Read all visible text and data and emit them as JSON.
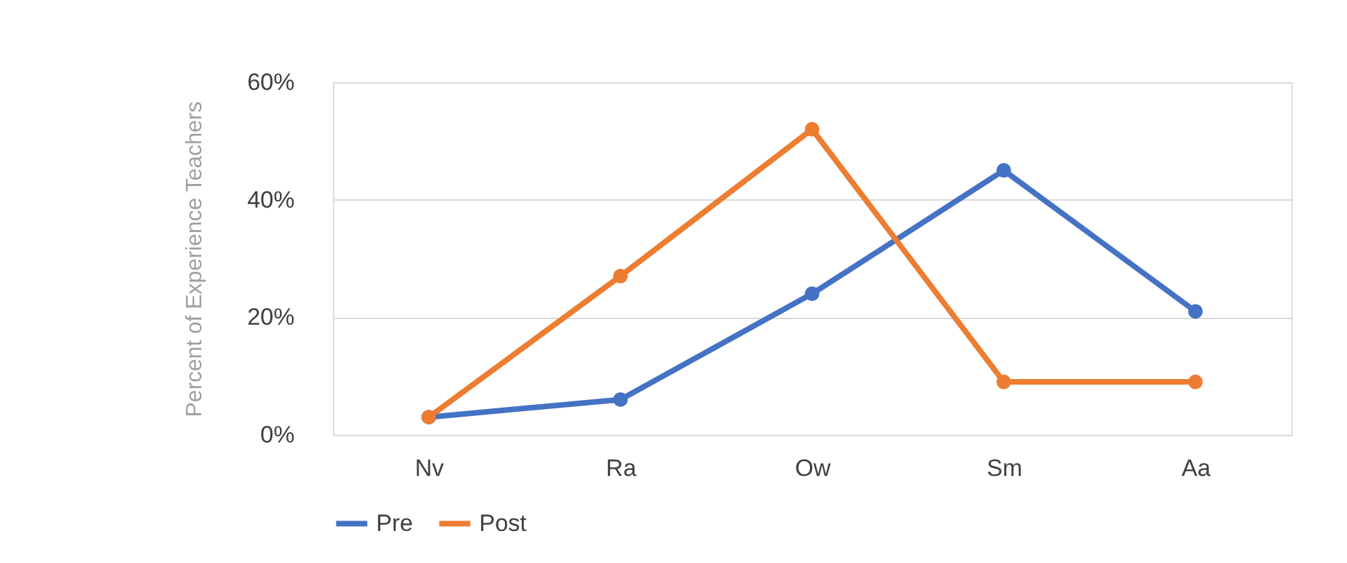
{
  "chart_data": {
    "type": "line",
    "ylabel": "Percent of Experience Teachers",
    "categories": [
      "Nv",
      "Ra",
      "Ow",
      "Sm",
      "Aa"
    ],
    "series": [
      {
        "name": "Pre",
        "color": "#4472c4",
        "values": [
          3,
          6,
          24,
          45,
          21
        ]
      },
      {
        "name": "Post",
        "color": "#ed7d31",
        "values": [
          3,
          27,
          52,
          9,
          9
        ]
      }
    ],
    "ylim": [
      0,
      60
    ],
    "yticks": [
      {
        "value": 0,
        "label": "0%"
      },
      {
        "value": 20,
        "label": "20%"
      },
      {
        "value": 40,
        "label": "40%"
      },
      {
        "value": 60,
        "label": "60%"
      }
    ],
    "grid": "y",
    "legend": "bottom",
    "marker": "circle",
    "line_style": "solid"
  }
}
